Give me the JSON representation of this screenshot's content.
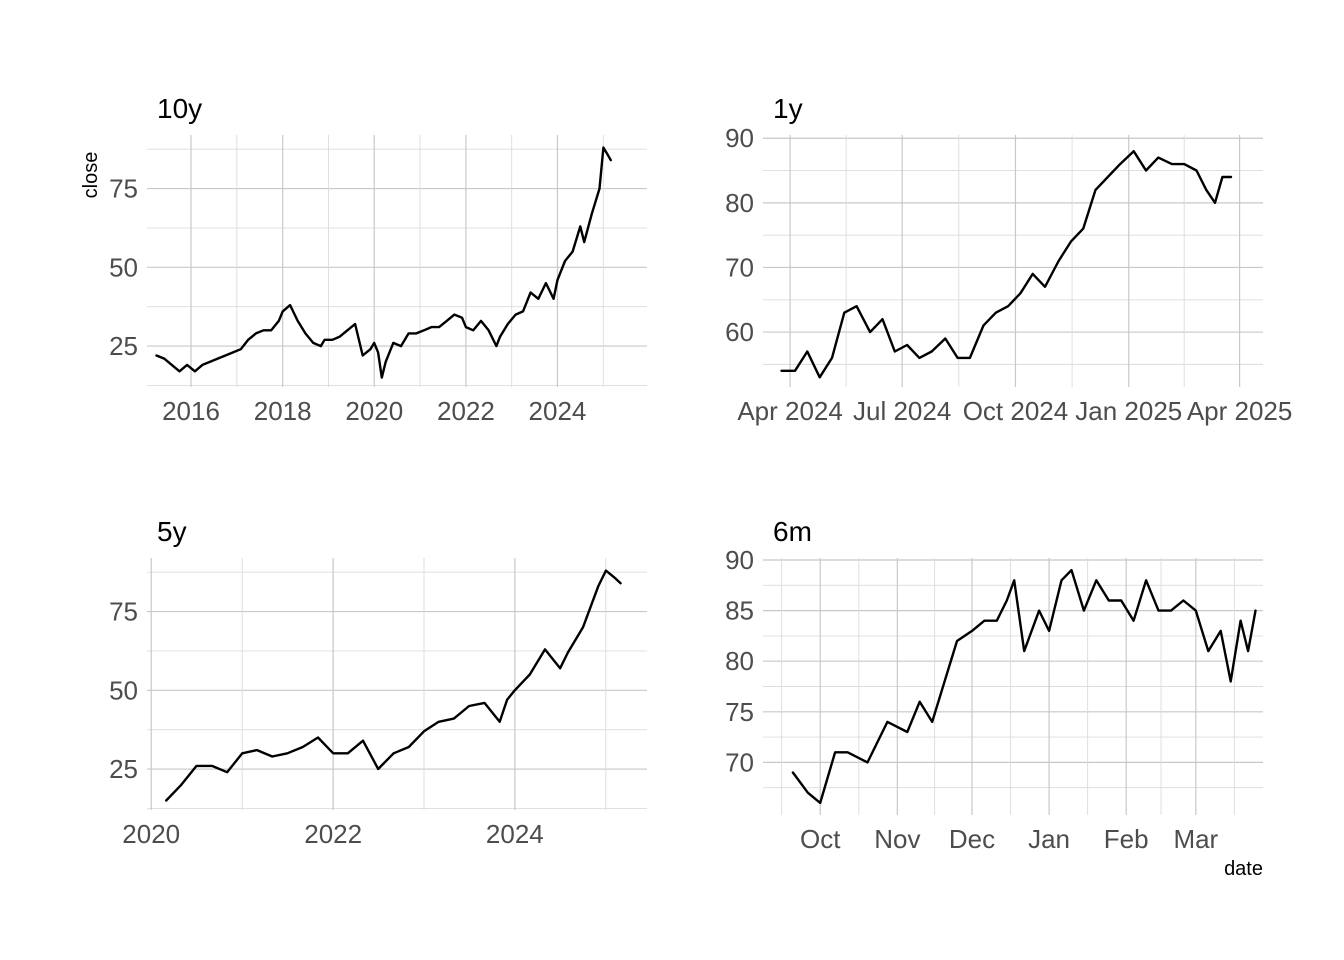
{
  "chart_data": [
    {
      "type": "line",
      "title": "10y",
      "ylabel": "close",
      "xlabel": "",
      "x_ticks": [
        "2016",
        "2018",
        "2020",
        "2022",
        "2024"
      ],
      "y_ticks": [
        "25",
        "50",
        "75"
      ],
      "ylim": [
        12,
        92
      ],
      "xlim": [
        "2015-01-15",
        "2025-12-15"
      ],
      "grid": true,
      "series": [
        {
          "x": [
            "2015-04",
            "2015-06",
            "2015-08",
            "2015-10",
            "2015-12",
            "2016-02",
            "2016-04",
            "2016-06",
            "2016-08",
            "2016-10",
            "2016-12",
            "2017-02",
            "2017-04",
            "2017-06",
            "2017-08",
            "2017-10",
            "2017-12",
            "2018-01",
            "2018-03",
            "2018-05",
            "2018-07",
            "2018-09",
            "2018-11",
            "2018-12",
            "2019-02",
            "2019-04",
            "2019-06",
            "2019-08",
            "2019-10",
            "2019-12",
            "2020-01",
            "2020-02",
            "2020-03",
            "2020-04",
            "2020-06",
            "2020-08",
            "2020-10",
            "2020-12",
            "2021-02",
            "2021-04",
            "2021-06",
            "2021-08",
            "2021-10",
            "2021-12",
            "2022-01",
            "2022-03",
            "2022-05",
            "2022-07",
            "2022-09",
            "2022-10",
            "2022-12",
            "2023-02",
            "2023-04",
            "2023-06",
            "2023-08",
            "2023-10",
            "2023-12",
            "2024-01",
            "2024-03",
            "2024-05",
            "2024-07",
            "2024-08",
            "2024-10",
            "2024-12",
            "2025-01",
            "2025-02",
            "2025-03"
          ],
          "y": [
            22,
            21,
            19,
            17,
            19,
            17,
            19,
            20,
            21,
            22,
            23,
            24,
            27,
            29,
            30,
            30,
            33,
            36,
            38,
            33,
            29,
            26,
            25,
            27,
            27,
            28,
            30,
            32,
            22,
            24,
            26,
            23,
            15,
            20,
            26,
            25,
            29,
            29,
            30,
            31,
            31,
            33,
            35,
            34,
            31,
            30,
            33,
            30,
            25,
            28,
            32,
            35,
            36,
            42,
            40,
            45,
            40,
            46,
            52,
            55,
            63,
            58,
            67,
            75,
            88,
            86,
            84
          ]
        }
      ]
    },
    {
      "type": "line",
      "title": "1y",
      "xlabel": "",
      "ylabel": "",
      "x_ticks": [
        "Apr 2024",
        "Jul 2024",
        "Oct 2024",
        "Jan 2025",
        "Apr 2025"
      ],
      "y_ticks": [
        "60",
        "70",
        "80",
        "90"
      ],
      "ylim": [
        51.5,
        90.5
      ],
      "xlim": [
        "2024-03-10",
        "2025-04-20"
      ],
      "grid": true,
      "series": [
        {
          "x": [
            "2024-03-25",
            "2024-04-05",
            "2024-04-15",
            "2024-04-25",
            "2024-05-05",
            "2024-05-15",
            "2024-05-25",
            "2024-06-05",
            "2024-06-15",
            "2024-06-25",
            "2024-07-05",
            "2024-07-15",
            "2024-07-25",
            "2024-08-05",
            "2024-08-15",
            "2024-08-25",
            "2024-09-05",
            "2024-09-15",
            "2024-09-25",
            "2024-10-05",
            "2024-10-15",
            "2024-10-25",
            "2024-11-05",
            "2024-11-15",
            "2024-11-25",
            "2024-12-05",
            "2024-12-15",
            "2024-12-25",
            "2025-01-05",
            "2025-01-15",
            "2025-01-25",
            "2025-02-05",
            "2025-02-15",
            "2025-02-25",
            "2025-03-05",
            "2025-03-12",
            "2025-03-18",
            "2025-03-25"
          ],
          "y": [
            54,
            54,
            57,
            53,
            56,
            63,
            64,
            60,
            62,
            57,
            58,
            56,
            57,
            59,
            56,
            56,
            61,
            63,
            64,
            66,
            69,
            67,
            71,
            74,
            76,
            82,
            84,
            86,
            88,
            85,
            87,
            86,
            86,
            85,
            82,
            80,
            84,
            84
          ]
        }
      ]
    },
    {
      "type": "line",
      "title": "5y",
      "xlabel": "",
      "ylabel": "",
      "x_ticks": [
        "2020",
        "2022",
        "2024"
      ],
      "y_ticks": [
        "25",
        "50",
        "75"
      ],
      "ylim": [
        12,
        92
      ],
      "xlim": [
        "2019-12-15",
        "2025-06-15"
      ],
      "grid": true,
      "series": [
        {
          "x": [
            "2020-03",
            "2020-05",
            "2020-07",
            "2020-09",
            "2020-11",
            "2021-01",
            "2021-03",
            "2021-05",
            "2021-07",
            "2021-09",
            "2021-11",
            "2022-01",
            "2022-03",
            "2022-05",
            "2022-07",
            "2022-09",
            "2022-11",
            "2023-01",
            "2023-03",
            "2023-05",
            "2023-07",
            "2023-09",
            "2023-11",
            "2023-12",
            "2024-01",
            "2024-03",
            "2024-05",
            "2024-07",
            "2024-08",
            "2024-10",
            "2024-12",
            "2025-01",
            "2025-02",
            "2025-03"
          ],
          "y": [
            15,
            20,
            26,
            26,
            24,
            30,
            31,
            29,
            30,
            32,
            35,
            30,
            30,
            34,
            25,
            30,
            32,
            37,
            40,
            41,
            45,
            46,
            40,
            47,
            50,
            55,
            63,
            57,
            62,
            70,
            83,
            88,
            86,
            84
          ]
        }
      ]
    },
    {
      "type": "line",
      "title": "6m",
      "xlabel": "date",
      "ylabel": "",
      "x_ticks": [
        "Oct",
        "Nov",
        "Dec",
        "Jan",
        "Feb",
        "Mar"
      ],
      "y_ticks": [
        "70",
        "75",
        "80",
        "85",
        "90"
      ],
      "ylim": [
        64.8,
        90.2
      ],
      "xlim": [
        "2024-09-08",
        "2025-03-28"
      ],
      "grid": true,
      "series": [
        {
          "x": [
            "2024-09-20",
            "2024-09-26",
            "2024-10-01",
            "2024-10-07",
            "2024-10-12",
            "2024-10-20",
            "2024-10-28",
            "2024-11-05",
            "2024-11-10",
            "2024-11-15",
            "2024-11-20",
            "2024-11-25",
            "2024-12-01",
            "2024-12-06",
            "2024-12-11",
            "2024-12-15",
            "2024-12-18",
            "2024-12-22",
            "2024-12-28",
            "2025-01-01",
            "2025-01-06",
            "2025-01-10",
            "2025-01-15",
            "2025-01-20",
            "2025-01-25",
            "2025-01-30",
            "2025-02-04",
            "2025-02-09",
            "2025-02-14",
            "2025-02-19",
            "2025-02-24",
            "2025-03-01",
            "2025-03-06",
            "2025-03-11",
            "2025-03-15",
            "2025-03-19",
            "2025-03-22",
            "2025-03-25"
          ],
          "y": [
            69,
            67,
            66,
            71,
            71,
            70,
            74,
            73,
            76,
            74,
            78,
            82,
            83,
            84,
            84,
            86,
            88,
            81,
            85,
            83,
            88,
            89,
            85,
            88,
            86,
            86,
            84,
            88,
            85,
            85,
            86,
            85,
            81,
            83,
            78,
            84,
            81,
            85
          ]
        }
      ]
    }
  ]
}
